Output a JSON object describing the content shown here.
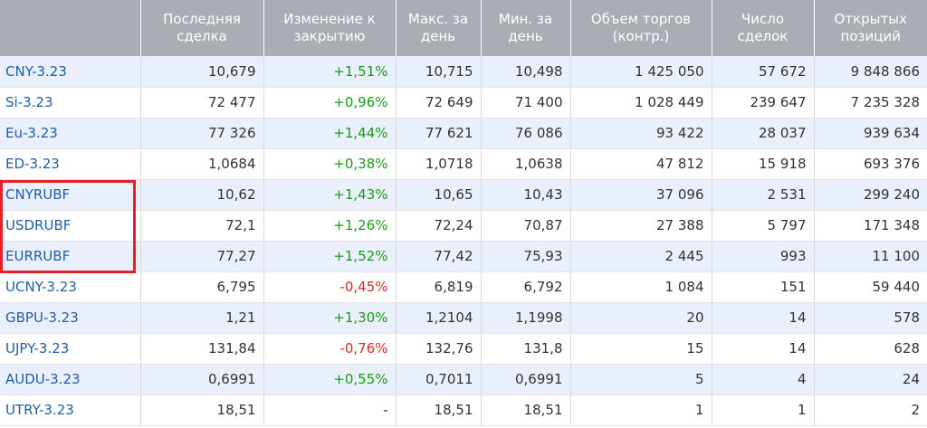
{
  "headers": [
    "",
    "Последняя сделка",
    "Изменение к закрытию",
    "Макс. за день",
    "Мин. за день",
    "Объем торгов (контр.)",
    "Число сделок",
    "Открытых позиций"
  ],
  "rows": [
    {
      "name": "CNY-3.23",
      "last": "10,679",
      "change": "+1,51%",
      "dir": "pos",
      "max": "10,715",
      "min": "10,498",
      "volume": "1 425 050",
      "deals": "57 672",
      "open": "9 848 866"
    },
    {
      "name": "Si-3.23",
      "last": "72 477",
      "change": "+0,96%",
      "dir": "pos",
      "max": "72 649",
      "min": "71 400",
      "volume": "1 028 449",
      "deals": "239 647",
      "open": "7 235 328"
    },
    {
      "name": "Eu-3.23",
      "last": "77 326",
      "change": "+1,44%",
      "dir": "pos",
      "max": "77 621",
      "min": "76 086",
      "volume": "93 422",
      "deals": "28 037",
      "open": "939 634"
    },
    {
      "name": "ED-3.23",
      "last": "1,0684",
      "change": "+0,38%",
      "dir": "pos",
      "max": "1,0718",
      "min": "1,0638",
      "volume": "47 812",
      "deals": "15 918",
      "open": "693 376"
    },
    {
      "name": "CNYRUBF",
      "last": "10,62",
      "change": "+1,43%",
      "dir": "pos",
      "max": "10,65",
      "min": "10,43",
      "volume": "37 096",
      "deals": "2 531",
      "open": "299 240"
    },
    {
      "name": "USDRUBF",
      "last": "72,1",
      "change": "+1,26%",
      "dir": "pos",
      "max": "72,24",
      "min": "70,87",
      "volume": "27 388",
      "deals": "5 797",
      "open": "171 348"
    },
    {
      "name": "EURRUBF",
      "last": "77,27",
      "change": "+1,52%",
      "dir": "pos",
      "max": "77,42",
      "min": "75,93",
      "volume": "2 445",
      "deals": "993",
      "open": "11 100"
    },
    {
      "name": "UCNY-3.23",
      "last": "6,795",
      "change": "-0,45%",
      "dir": "neg",
      "max": "6,819",
      "min": "6,792",
      "volume": "1 084",
      "deals": "151",
      "open": "59 440"
    },
    {
      "name": "GBPU-3.23",
      "last": "1,21",
      "change": "+1,30%",
      "dir": "pos",
      "max": "1,2104",
      "min": "1,1998",
      "volume": "20",
      "deals": "14",
      "open": "578"
    },
    {
      "name": "UJPY-3.23",
      "last": "131,84",
      "change": "-0,76%",
      "dir": "neg",
      "max": "132,76",
      "min": "131,8",
      "volume": "15",
      "deals": "14",
      "open": "628"
    },
    {
      "name": "AUDU-3.23",
      "last": "0,6991",
      "change": "+0,55%",
      "dir": "pos",
      "max": "0,7011",
      "min": "0,6991",
      "volume": "5",
      "deals": "4",
      "open": "24"
    },
    {
      "name": "UTRY-3.23",
      "last": "18,51",
      "change": "-",
      "dir": "dash",
      "max": "18,51",
      "min": "18,51",
      "volume": "1",
      "deals": "1",
      "open": "2"
    }
  ],
  "colors": {
    "header_bg": "#a9aeb5",
    "row_alt_bg": "#eaf0fb",
    "link": "#1f5fa8",
    "positive": "#1a9a1a",
    "negative": "#e0242a",
    "highlight_border": "#e3212b"
  }
}
